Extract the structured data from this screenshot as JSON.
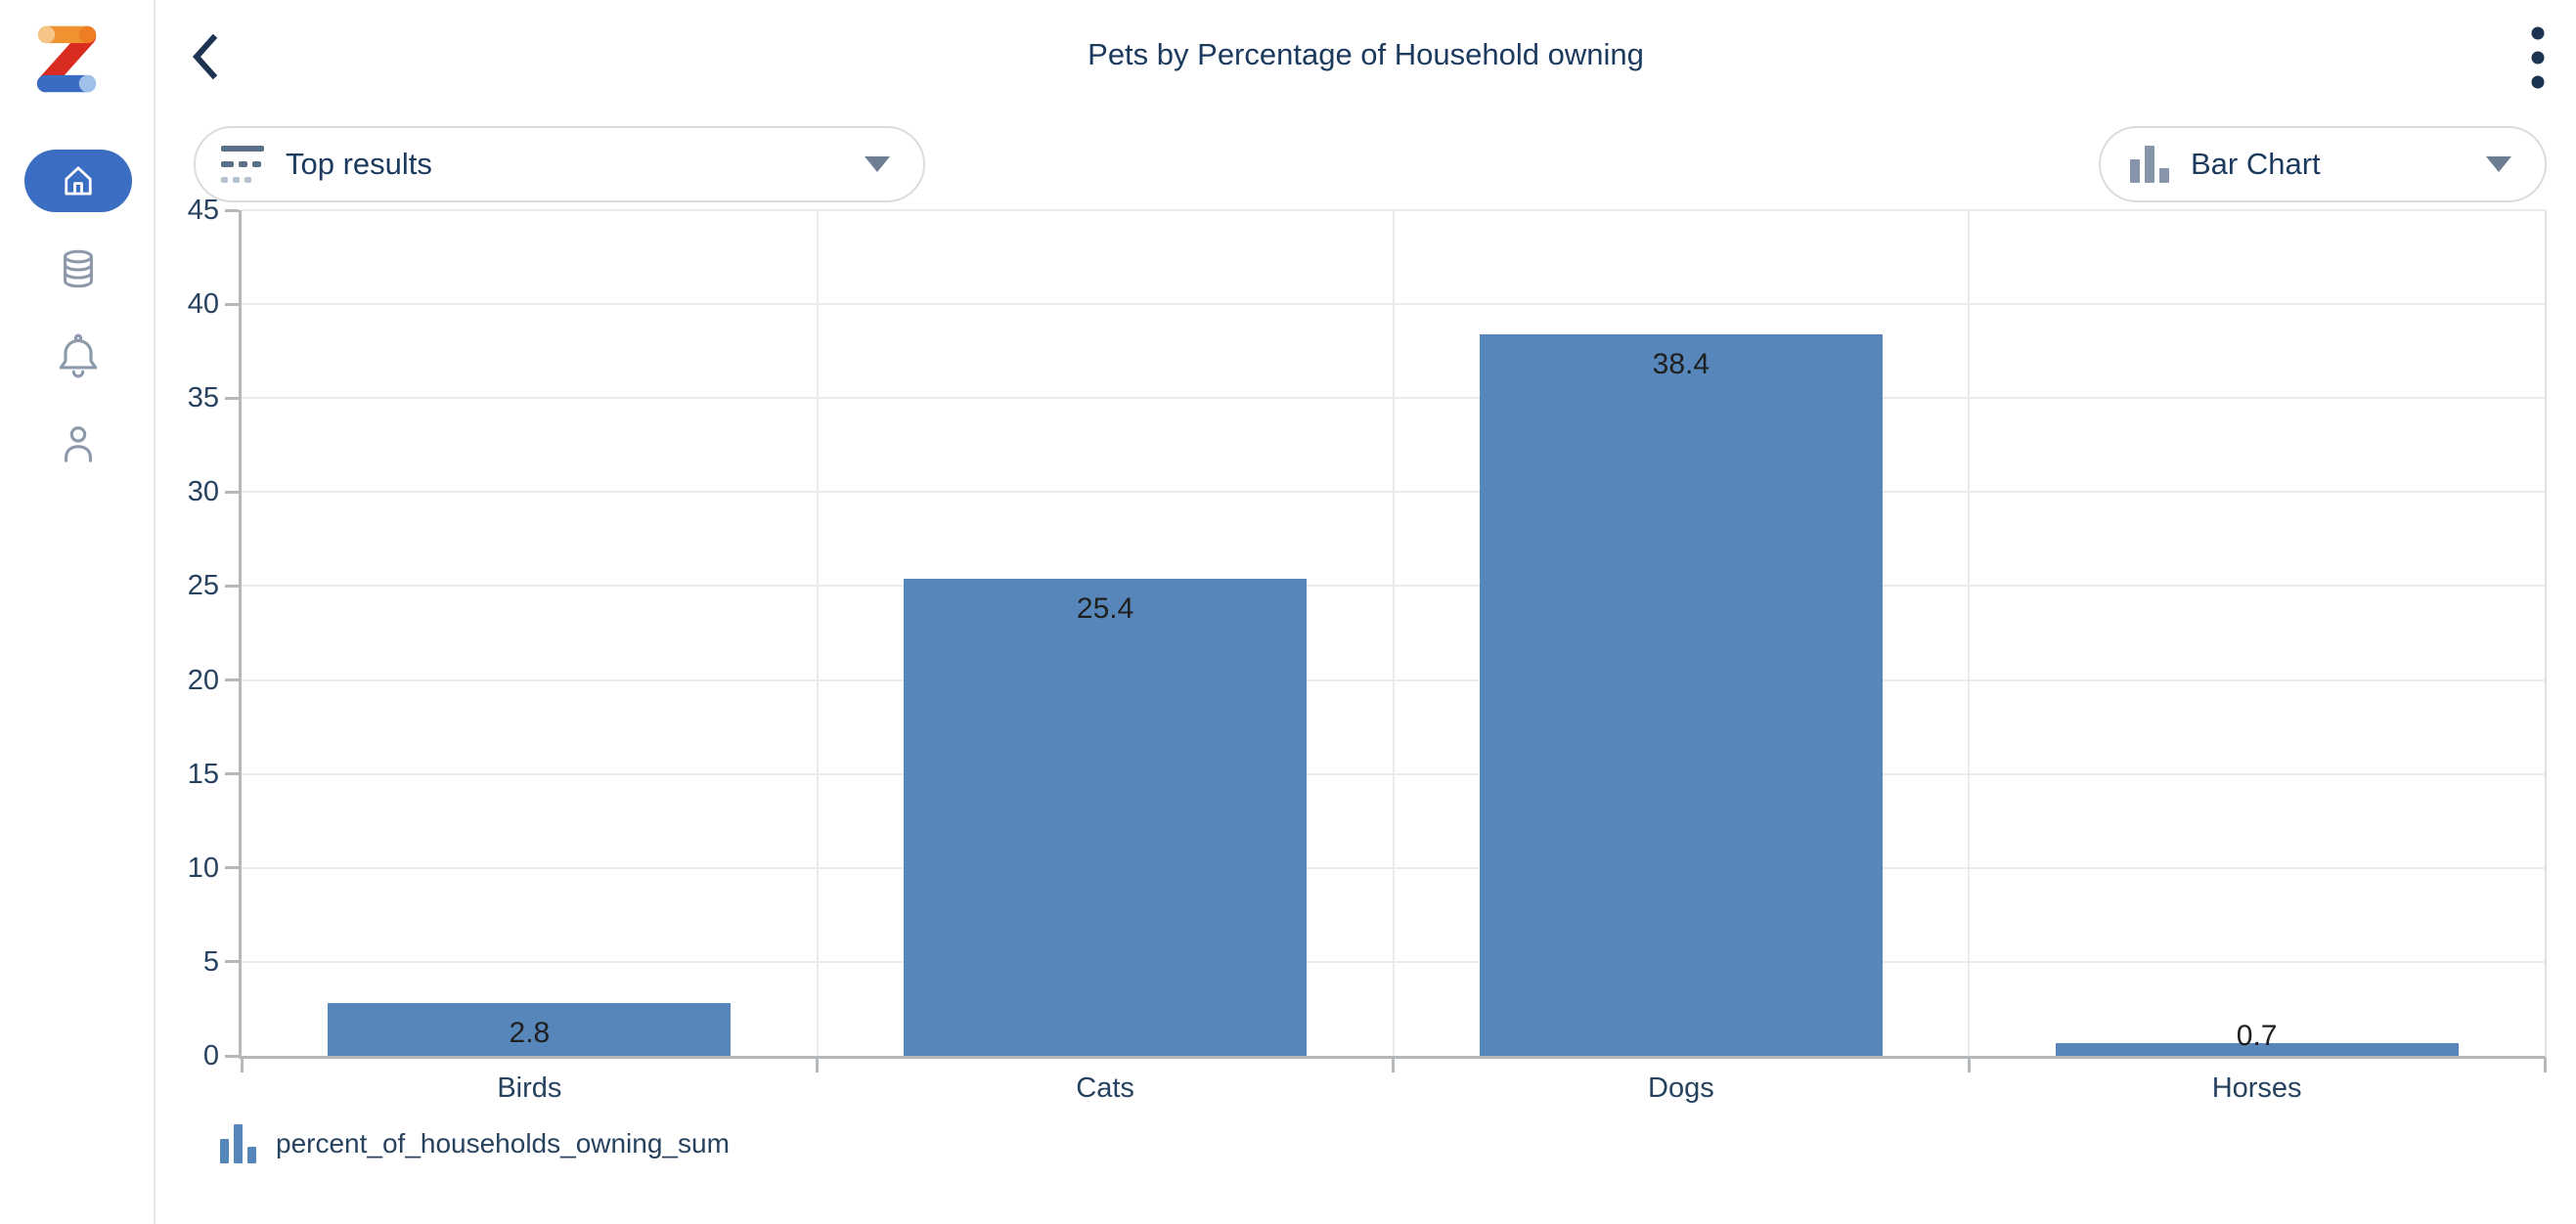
{
  "header": {
    "title": "Pets by Percentage of Household owning",
    "back_icon": "chevron-left",
    "menu_icon": "kebab-vertical"
  },
  "sidebar": {
    "items": [
      {
        "name": "home",
        "icon": "home-icon",
        "active": true
      },
      {
        "name": "data",
        "icon": "database-icon",
        "active": false
      },
      {
        "name": "alerts",
        "icon": "bell-icon",
        "active": false
      },
      {
        "name": "profile",
        "icon": "person-icon",
        "active": false
      }
    ],
    "active_pill_color": "#3b6dc2",
    "inactive_icon_color": "#8b99ab"
  },
  "controls": {
    "results_dropdown": {
      "label": "Top results",
      "icon": "top-results-icon",
      "caret": "caret-down"
    },
    "chart_type_dropdown": {
      "label": "Bar Chart",
      "icon": "bar-chart-icon",
      "caret": "caret-down"
    }
  },
  "chart_data": {
    "type": "bar",
    "categories": [
      "Birds",
      "Cats",
      "Dogs",
      "Horses"
    ],
    "values": [
      2.8,
      25.4,
      38.4,
      0.7
    ],
    "series_name": "percent_of_households_owning_sum",
    "title": "Pets by Percentage of Household owning",
    "xlabel": "",
    "ylabel": "",
    "ylim": [
      0,
      45
    ],
    "ytick_step": 5,
    "grid": true,
    "bar_color": "#5787ba",
    "value_label_color": "#1f1f1f",
    "axis_text_color": "#27425f",
    "legend_position": "bottom-left"
  },
  "colors": {
    "title_navy": "#1c3a5e",
    "accent_blue": "#3b6dc2",
    "bar_blue": "#5787ba",
    "logo_orange": "#f0922f",
    "logo_red": "#d92b1f",
    "logo_blue": "#3a6cc3"
  }
}
